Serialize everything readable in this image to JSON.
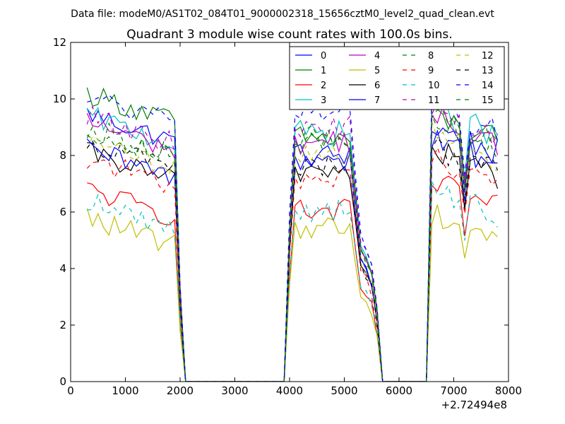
{
  "figure": {
    "suptitle": "Data file: modeM0/AS1T02_084T01_9000002318_15656cztM0_level2_quad_clean.evt"
  },
  "chart_data": {
    "type": "line",
    "title": "Quadrant 3 module wise count rates with 100.0s bins.",
    "xlabel": "",
    "ylabel": "",
    "x_offset_label": "+2.72494e8",
    "xlim": [
      0,
      8000
    ],
    "ylim": [
      0,
      12
    ],
    "x_ticks": [
      0,
      1000,
      2000,
      3000,
      4000,
      5000,
      6000,
      7000,
      8000
    ],
    "x_tick_labels": [
      "0",
      "1000",
      "2000",
      "3000",
      "4000",
      "5000",
      "6000",
      "7000",
      "8000"
    ],
    "y_ticks": [
      0,
      2,
      4,
      6,
      8,
      10,
      12
    ],
    "y_tick_labels": [
      "0",
      "2",
      "4",
      "6",
      "8",
      "10",
      "12"
    ],
    "legend_location": "top-right",
    "legend_columns": 4,
    "segments": [
      {
        "start": 300,
        "end": 1900,
        "gap_before": 2100
      },
      {
        "start": 4000,
        "end": 5600,
        "gap_before": 3900
      },
      {
        "start": 6600,
        "end": 7800,
        "gap_before": 6500
      }
    ],
    "series": [
      {
        "name": "0",
        "color": "#0000ff",
        "style": "solid",
        "levels": [
          8.9,
          8.0,
          8.6
        ]
      },
      {
        "name": "1",
        "color": "#008000",
        "style": "solid",
        "levels": [
          9.6,
          8.6,
          9.0
        ]
      },
      {
        "name": "2",
        "color": "#ff0000",
        "style": "solid",
        "levels": [
          6.2,
          6.0,
          6.6
        ]
      },
      {
        "name": "3",
        "color": "#00bfbf",
        "style": "solid",
        "levels": [
          8.8,
          8.8,
          9.2
        ]
      },
      {
        "name": "4",
        "color": "#bf00bf",
        "style": "solid",
        "levels": [
          8.6,
          8.5,
          9.0
        ]
      },
      {
        "name": "5",
        "color": "#bfbf00",
        "style": "solid",
        "levels": [
          5.2,
          5.5,
          5.6
        ]
      },
      {
        "name": "6",
        "color": "#000000",
        "style": "solid",
        "levels": [
          7.5,
          7.5,
          7.8
        ]
      },
      {
        "name": "7",
        "color": "#0000ff",
        "style": "solid",
        "levels": [
          7.6,
          7.9,
          8.2
        ]
      },
      {
        "name": "8",
        "color": "#008000",
        "style": "dashed",
        "levels": [
          8.4,
          8.5,
          8.8
        ]
      },
      {
        "name": "9",
        "color": "#ff0000",
        "style": "dashed",
        "levels": [
          7.3,
          7.2,
          7.6
        ]
      },
      {
        "name": "10",
        "color": "#00bfbf",
        "style": "dashed",
        "levels": [
          5.8,
          6.1,
          6.4
        ]
      },
      {
        "name": "11",
        "color": "#bf00bf",
        "style": "dashed",
        "levels": [
          8.8,
          9.0,
          9.2
        ]
      },
      {
        "name": "12",
        "color": "#bfbf00",
        "style": "dashed",
        "levels": [
          7.9,
          8.1,
          8.4
        ]
      },
      {
        "name": "13",
        "color": "#000000",
        "style": "dashed",
        "levels": [
          7.9,
          7.6,
          7.9
        ]
      },
      {
        "name": "14",
        "color": "#0000ff",
        "style": "dashed",
        "levels": [
          9.5,
          9.6,
          9.4
        ]
      },
      {
        "name": "15",
        "color": "#008000",
        "style": "dashed",
        "levels": [
          8.3,
          8.6,
          8.9
        ]
      }
    ]
  }
}
